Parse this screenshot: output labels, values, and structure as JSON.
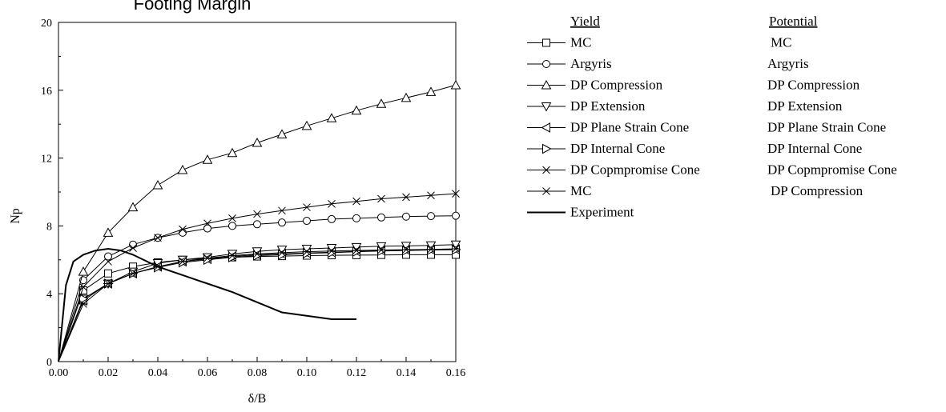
{
  "chart_data": {
    "type": "line",
    "title": "Footing Margin",
    "xlabel": "δ/B",
    "ylabel": "Np",
    "xlim": [
      0,
      0.16
    ],
    "ylim": [
      0,
      20
    ],
    "xticks": [
      "0.00",
      "0.02",
      "0.04",
      "0.06",
      "0.08",
      "0.10",
      "0.12",
      "0.14",
      "0.16"
    ],
    "yticks": [
      "0",
      "4",
      "8",
      "12",
      "16",
      "20"
    ],
    "legend_position": "right",
    "legend_headers": {
      "yield": "Yield",
      "potential": "Potential"
    },
    "series": [
      {
        "name": "MC",
        "potential": "MC",
        "marker": "square",
        "x": [
          0,
          0.01,
          0.02,
          0.03,
          0.04,
          0.05,
          0.06,
          0.07,
          0.08,
          0.09,
          0.1,
          0.11,
          0.12,
          0.13,
          0.14,
          0.15,
          0.16
        ],
        "y": [
          0,
          4.2,
          5.2,
          5.6,
          5.85,
          6.0,
          6.1,
          6.15,
          6.2,
          6.22,
          6.25,
          6.27,
          6.28,
          6.29,
          6.3,
          6.3,
          6.3
        ]
      },
      {
        "name": "Argyris",
        "potential": "Argyris",
        "marker": "circle",
        "x": [
          0,
          0.01,
          0.02,
          0.03,
          0.04,
          0.05,
          0.06,
          0.07,
          0.08,
          0.09,
          0.1,
          0.11,
          0.12,
          0.13,
          0.14,
          0.15,
          0.16
        ],
        "y": [
          0,
          4.8,
          6.2,
          6.9,
          7.3,
          7.6,
          7.85,
          8.0,
          8.1,
          8.2,
          8.3,
          8.4,
          8.45,
          8.5,
          8.55,
          8.58,
          8.6
        ]
      },
      {
        "name": "DP Compression",
        "potential": "DP Compression",
        "marker": "triangle-up",
        "x": [
          0,
          0.01,
          0.02,
          0.03,
          0.04,
          0.05,
          0.06,
          0.07,
          0.08,
          0.09,
          0.1,
          0.11,
          0.12,
          0.13,
          0.14,
          0.15,
          0.16
        ],
        "y": [
          0,
          5.3,
          7.6,
          9.1,
          10.4,
          11.3,
          11.9,
          12.3,
          12.9,
          13.4,
          13.9,
          14.35,
          14.8,
          15.2,
          15.55,
          15.9,
          16.3
        ]
      },
      {
        "name": "DP Extension",
        "potential": "DP Extension",
        "marker": "triangle-down",
        "x": [
          0,
          0.01,
          0.02,
          0.03,
          0.04,
          0.05,
          0.06,
          0.07,
          0.08,
          0.09,
          0.1,
          0.11,
          0.12,
          0.13,
          0.14,
          0.15,
          0.16
        ],
        "y": [
          0,
          3.7,
          4.6,
          5.3,
          5.8,
          6.0,
          6.15,
          6.35,
          6.5,
          6.6,
          6.65,
          6.7,
          6.75,
          6.8,
          6.82,
          6.85,
          6.9
        ]
      },
      {
        "name": "DP Plane Strain Cone",
        "potential": "DP Plane Strain Cone",
        "marker": "triangle-left",
        "x": [
          0,
          0.01,
          0.02,
          0.03,
          0.04,
          0.05,
          0.06,
          0.07,
          0.08,
          0.09,
          0.1,
          0.11,
          0.12,
          0.13,
          0.14,
          0.15,
          0.16
        ],
        "y": [
          0,
          3.6,
          4.6,
          5.2,
          5.6,
          5.9,
          6.05,
          6.2,
          6.3,
          6.35,
          6.4,
          6.45,
          6.5,
          6.55,
          6.58,
          6.6,
          6.62
        ]
      },
      {
        "name": "DP Internal Cone",
        "potential": "DP Internal Cone",
        "marker": "triangle-right",
        "x": [
          0,
          0.01,
          0.02,
          0.03,
          0.04,
          0.05,
          0.06,
          0.07,
          0.08,
          0.09,
          0.1,
          0.11,
          0.12,
          0.13,
          0.14,
          0.15,
          0.16
        ],
        "y": [
          0,
          3.7,
          4.6,
          5.2,
          5.55,
          5.85,
          6.0,
          6.15,
          6.25,
          6.3,
          6.38,
          6.42,
          6.48,
          6.52,
          6.55,
          6.58,
          6.6
        ]
      },
      {
        "name": "DP Copmpromise Cone",
        "potential": "DP Copmpromise Cone",
        "marker": "x",
        "x": [
          0,
          0.01,
          0.02,
          0.03,
          0.04,
          0.05,
          0.06,
          0.07,
          0.08,
          0.09,
          0.1,
          0.11,
          0.12,
          0.13,
          0.14,
          0.15,
          0.16
        ],
        "y": [
          0,
          4.4,
          5.9,
          6.7,
          7.3,
          7.8,
          8.15,
          8.45,
          8.7,
          8.9,
          9.1,
          9.3,
          9.45,
          9.6,
          9.7,
          9.8,
          9.9
        ]
      },
      {
        "name": "MC",
        "potential": "DP Compression",
        "marker": "asterisk",
        "x": [
          0,
          0.01,
          0.02,
          0.03,
          0.04,
          0.05,
          0.06,
          0.07,
          0.08,
          0.09,
          0.1,
          0.11,
          0.12,
          0.13,
          0.14,
          0.15,
          0.16
        ],
        "y": [
          0,
          3.4,
          4.6,
          5.2,
          5.6,
          5.9,
          6.1,
          6.25,
          6.35,
          6.42,
          6.48,
          6.52,
          6.55,
          6.58,
          6.6,
          6.62,
          6.65
        ]
      },
      {
        "name": "Experiment",
        "potential": "",
        "marker": "none",
        "x": [
          0,
          0.003,
          0.006,
          0.01,
          0.015,
          0.02,
          0.025,
          0.03,
          0.035,
          0.04,
          0.05,
          0.06,
          0.07,
          0.08,
          0.09,
          0.1,
          0.11,
          0.12
        ],
        "y": [
          0,
          4.5,
          5.9,
          6.3,
          6.55,
          6.65,
          6.55,
          6.3,
          5.95,
          5.6,
          5.1,
          4.6,
          4.1,
          3.5,
          2.9,
          2.7,
          2.5,
          2.5
        ]
      }
    ]
  }
}
